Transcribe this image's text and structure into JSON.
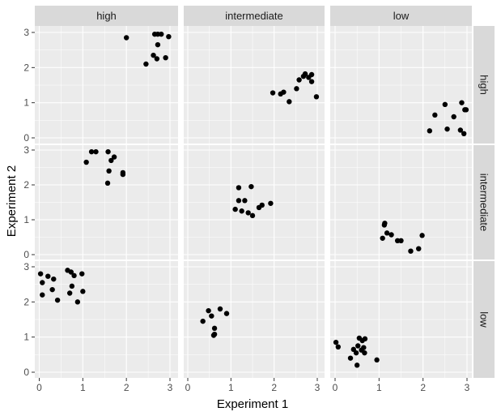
{
  "chart_data": {
    "type": "scatter",
    "xlabel": "Experiment 1",
    "ylabel": "Experiment 2",
    "xlim": [
      0,
      3
    ],
    "ylim": [
      0,
      3
    ],
    "xticks": [
      0,
      1,
      2,
      3
    ],
    "yticks": [
      0,
      1,
      2,
      3
    ],
    "facet_cols": [
      "high",
      "intermediate",
      "low"
    ],
    "facet_rows": [
      "high",
      "intermediate",
      "low"
    ],
    "panels": [
      {
        "col": "high",
        "row": "high",
        "points": [
          [
            2.0,
            2.85
          ],
          [
            2.45,
            2.1
          ],
          [
            2.65,
            2.95
          ],
          [
            2.72,
            2.95
          ],
          [
            2.8,
            2.95
          ],
          [
            2.97,
            2.88
          ],
          [
            2.62,
            2.35
          ],
          [
            2.7,
            2.25
          ],
          [
            2.9,
            2.28
          ],
          [
            2.72,
            2.65
          ]
        ]
      },
      {
        "col": "intermediate",
        "row": "high",
        "points": [
          [
            1.97,
            1.28
          ],
          [
            2.15,
            1.25
          ],
          [
            2.22,
            1.3
          ],
          [
            2.35,
            1.03
          ],
          [
            2.52,
            1.4
          ],
          [
            2.58,
            1.65
          ],
          [
            2.68,
            1.75
          ],
          [
            2.72,
            1.82
          ],
          [
            2.8,
            1.72
          ],
          [
            2.87,
            1.8
          ],
          [
            2.87,
            1.6
          ],
          [
            2.98,
            1.17
          ]
        ]
      },
      {
        "col": "low",
        "row": "high",
        "points": [
          [
            2.15,
            0.2
          ],
          [
            2.27,
            0.65
          ],
          [
            2.5,
            0.95
          ],
          [
            2.55,
            0.25
          ],
          [
            2.7,
            0.6
          ],
          [
            2.85,
            0.22
          ],
          [
            2.88,
            1.0
          ],
          [
            2.95,
            0.8
          ],
          [
            2.98,
            0.8
          ],
          [
            2.93,
            0.12
          ]
        ]
      },
      {
        "col": "high",
        "row": "intermediate",
        "points": [
          [
            1.08,
            2.65
          ],
          [
            1.2,
            2.95
          ],
          [
            1.3,
            2.95
          ],
          [
            1.58,
            2.95
          ],
          [
            1.57,
            2.05
          ],
          [
            1.6,
            2.4
          ],
          [
            1.65,
            2.7
          ],
          [
            1.72,
            2.8
          ],
          [
            1.92,
            2.35
          ],
          [
            1.92,
            2.3
          ]
        ]
      },
      {
        "col": "intermediate",
        "row": "intermediate",
        "points": [
          [
            1.1,
            1.3
          ],
          [
            1.18,
            1.92
          ],
          [
            1.18,
            1.55
          ],
          [
            1.25,
            1.25
          ],
          [
            1.32,
            1.55
          ],
          [
            1.4,
            1.2
          ],
          [
            1.47,
            1.95
          ],
          [
            1.5,
            1.12
          ],
          [
            1.65,
            1.35
          ],
          [
            1.72,
            1.42
          ],
          [
            1.92,
            1.47
          ]
        ]
      },
      {
        "col": "low",
        "row": "intermediate",
        "points": [
          [
            1.08,
            0.47
          ],
          [
            1.12,
            0.85
          ],
          [
            1.13,
            0.9
          ],
          [
            1.18,
            0.62
          ],
          [
            1.28,
            0.57
          ],
          [
            1.42,
            0.4
          ],
          [
            1.5,
            0.4
          ],
          [
            1.72,
            0.1
          ],
          [
            1.9,
            0.17
          ],
          [
            1.98,
            0.55
          ]
        ]
      },
      {
        "col": "high",
        "row": "low",
        "points": [
          [
            0.03,
            2.8
          ],
          [
            0.07,
            2.55
          ],
          [
            0.07,
            2.2
          ],
          [
            0.2,
            2.73
          ],
          [
            0.3,
            2.35
          ],
          [
            0.33,
            2.65
          ],
          [
            0.42,
            2.05
          ],
          [
            0.65,
            2.9
          ],
          [
            0.7,
            2.25
          ],
          [
            0.73,
            2.85
          ],
          [
            0.75,
            2.45
          ],
          [
            0.8,
            2.75
          ],
          [
            0.88,
            2.0
          ],
          [
            0.98,
            2.8
          ],
          [
            1.0,
            2.3
          ]
        ]
      },
      {
        "col": "intermediate",
        "row": "low",
        "points": [
          [
            0.35,
            1.45
          ],
          [
            0.48,
            1.75
          ],
          [
            0.55,
            1.6
          ],
          [
            0.6,
            1.05
          ],
          [
            0.62,
            1.25
          ],
          [
            0.62,
            1.08
          ],
          [
            0.75,
            1.8
          ],
          [
            0.9,
            1.67
          ]
        ]
      },
      {
        "col": "low",
        "row": "low",
        "points": [
          [
            0.02,
            0.85
          ],
          [
            0.07,
            0.72
          ],
          [
            0.35,
            0.4
          ],
          [
            0.42,
            0.65
          ],
          [
            0.48,
            0.55
          ],
          [
            0.5,
            0.2
          ],
          [
            0.52,
            0.75
          ],
          [
            0.55,
            0.97
          ],
          [
            0.6,
            0.63
          ],
          [
            0.62,
            0.9
          ],
          [
            0.65,
            0.7
          ],
          [
            0.67,
            0.55
          ],
          [
            0.68,
            0.95
          ],
          [
            0.95,
            0.35
          ]
        ]
      }
    ]
  }
}
